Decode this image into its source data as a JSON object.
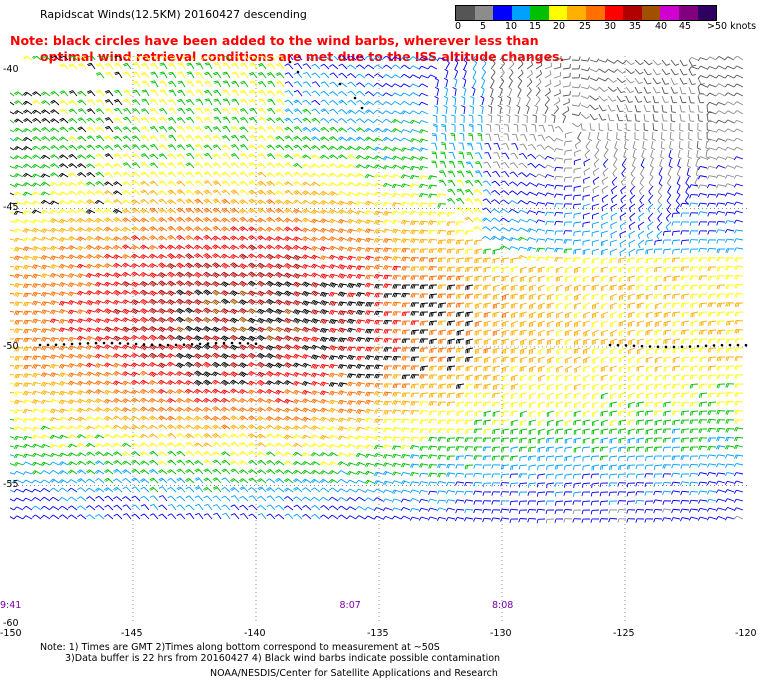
{
  "header": {
    "title": "Rapidscat Winds(12.5KM) 20160427 descending",
    "note_line1": "Note: black circles have been added to the wind barbs, wherever less than",
    "note_line2": "optimal wind retrieval conditions are met due to the ISS altitude changes."
  },
  "colorbar": {
    "colors": [
      "#555555",
      "#8c8c8c",
      "#0000ff",
      "#00a0ff",
      "#00c000",
      "#ffff00",
      "#ffb000",
      "#ff7000",
      "#ff0000",
      "#b00000",
      "#a05000",
      "#d000d0",
      "#800080",
      "#300060"
    ],
    "labels": [
      "0",
      "5",
      "10",
      "15",
      "20",
      "25",
      "30",
      "35",
      "40",
      "45",
      ">50 knots"
    ]
  },
  "map": {
    "lat_labels": [
      "-40",
      "-45",
      "-50",
      "-55",
      "-60"
    ],
    "lon_labels": [
      "-150",
      "-145",
      "-140",
      "-135",
      "-130",
      "-125",
      "-120"
    ],
    "time_labels": [
      "9:41",
      "8:07",
      "8:08"
    ],
    "lat_range": [
      -60,
      -39.5
    ],
    "lon_range": [
      -150,
      -120
    ]
  },
  "footer": {
    "line1": "Note: 1) Times are GMT 2)Times along bottom correspond to measurement at ~50S",
    "line2": "3)Data buffer is 22 hrs from 20160427 4) Black wind barbs indicate possible contamination",
    "credit": "NOAA/NESDIS/Center for Satellite Applications and Research"
  }
}
